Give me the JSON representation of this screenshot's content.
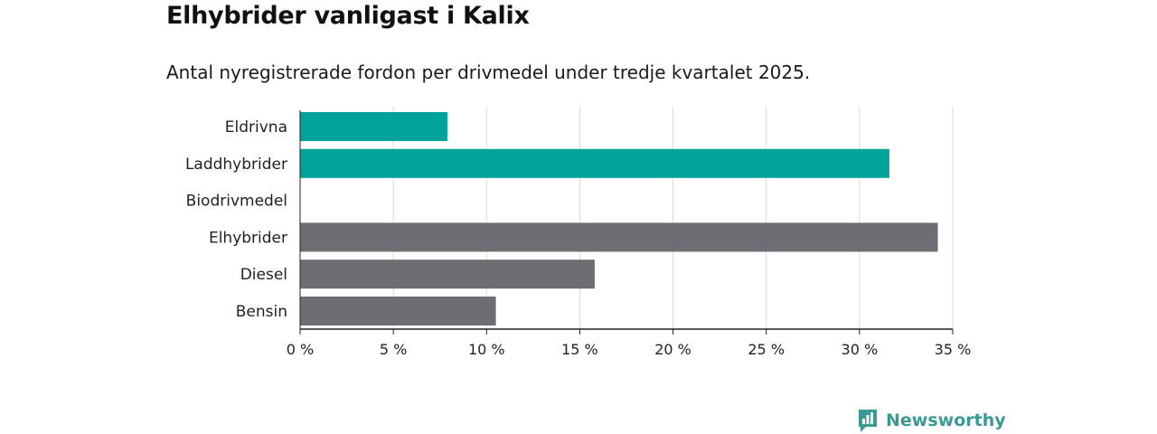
{
  "title": "Elhybrider vanligast i Kalix",
  "subtitle": "Antal nyregistrerade fordon per drivmedel under tredje kvartalet 2025.",
  "brand": {
    "name": "Newsworthy",
    "icon": "newsworthy-logo-icon",
    "color": "#3a9a93"
  },
  "colors": {
    "highlight": "#00a398",
    "default": "#6e6d73",
    "grid": "#d9d9d9",
    "axis": "#222222"
  },
  "chart_data": {
    "type": "bar",
    "orientation": "horizontal",
    "title": "Elhybrider vanligast i Kalix",
    "subtitle": "Antal nyregistrerade fordon per drivmedel under tredje kvartalet 2025.",
    "xlabel": "",
    "ylabel": "",
    "unit": "%",
    "categories": [
      "Eldrivna",
      "Laddhybrider",
      "Biodrivmedel",
      "Elhybrider",
      "Diesel",
      "Bensin"
    ],
    "values": [
      7.9,
      31.6,
      0,
      34.2,
      15.8,
      10.5
    ],
    "highlighted": [
      true,
      true,
      false,
      false,
      false,
      false
    ],
    "xlim": [
      0,
      35
    ],
    "xticks": [
      0,
      5,
      10,
      15,
      20,
      25,
      30,
      35
    ],
    "xtick_labels": [
      "0 %",
      "5 %",
      "10 %",
      "15 %",
      "20 %",
      "25 %",
      "30 %",
      "35 %"
    ],
    "grid": true
  }
}
